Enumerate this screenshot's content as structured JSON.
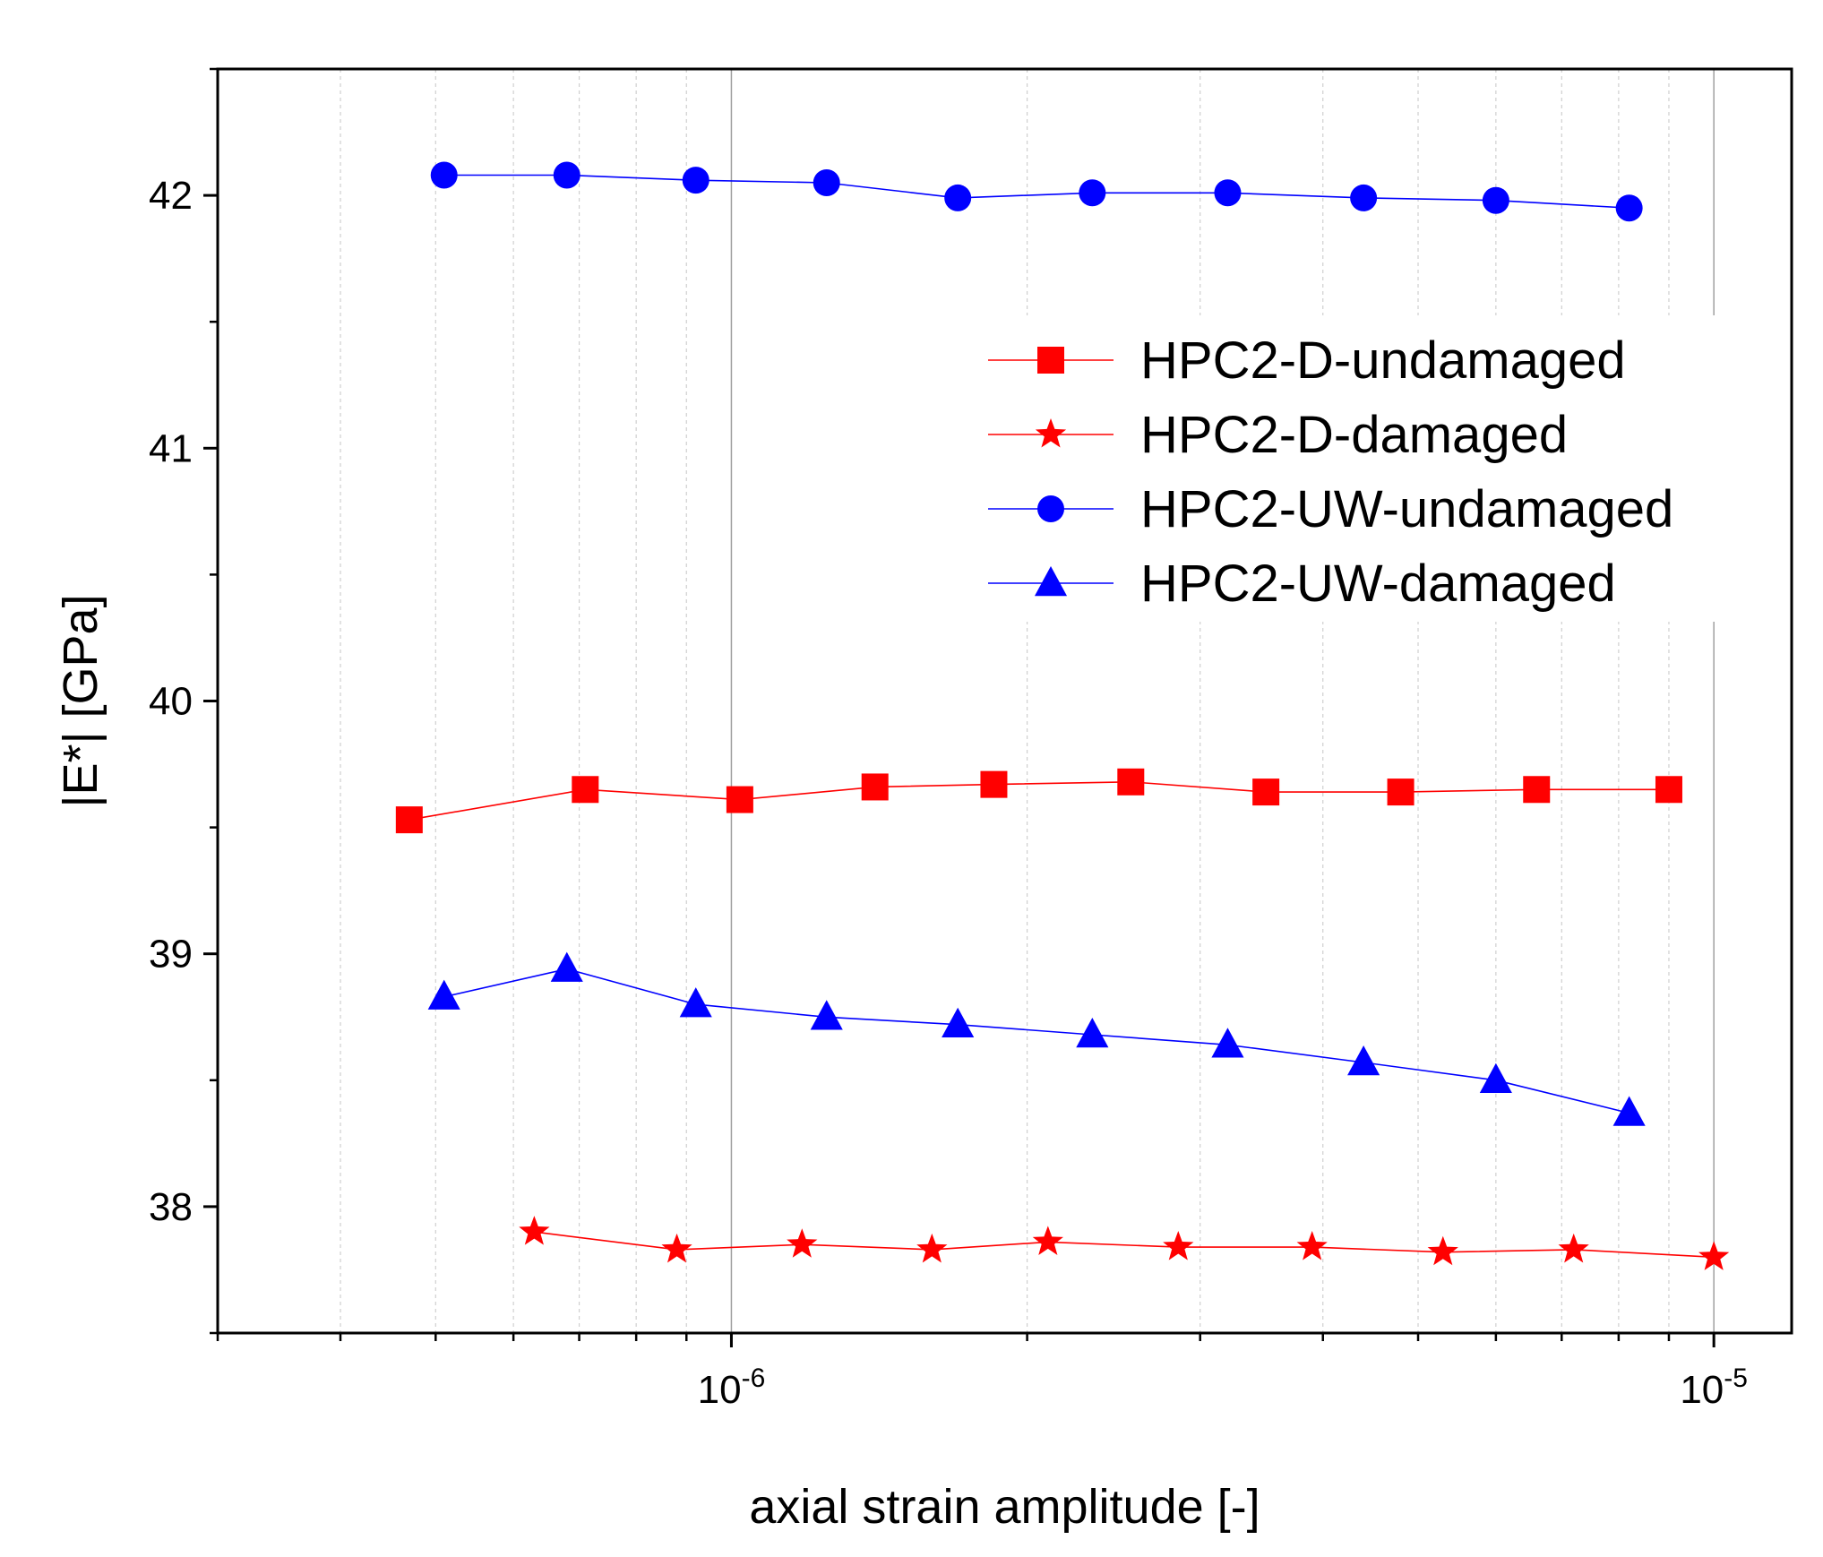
{
  "chart_data": {
    "type": "line",
    "title": "",
    "xlabel": "axial strain amplitude [-]",
    "ylabel": "|E*| [GPa]",
    "xscale": "log",
    "xlim": [
      3e-07,
      1.2e-05
    ],
    "ylim": [
      37.5,
      42.5
    ],
    "grid": "vertical (major solid, minor dashed)",
    "legend_position": "right, upper-middle",
    "x_ticks": [
      {
        "value": 1e-06,
        "base": "10",
        "exp": "-6"
      },
      {
        "value": 1e-05,
        "base": "10",
        "exp": "-5"
      }
    ],
    "y_ticks": [
      {
        "value": 38,
        "label": "38"
      },
      {
        "value": 39,
        "label": "39"
      },
      {
        "value": 40,
        "label": "40"
      },
      {
        "value": 41,
        "label": "41"
      },
      {
        "value": 42,
        "label": "42"
      }
    ],
    "series": [
      {
        "name": "HPC2-D-undamaged",
        "color": "#ff0000",
        "marker": "square",
        "x": [
          4.7e-07,
          7.1e-07,
          1.02e-06,
          1.4e-06,
          1.85e-06,
          2.55e-06,
          3.5e-06,
          4.8e-06,
          6.6e-06,
          9e-06
        ],
        "y": [
          39.53,
          39.65,
          39.61,
          39.66,
          39.67,
          39.68,
          39.64,
          39.64,
          39.65,
          39.65
        ]
      },
      {
        "name": "HPC2-D-damaged",
        "color": "#ff0000",
        "marker": "star",
        "x": [
          6.3e-07,
          8.8e-07,
          1.18e-06,
          1.6e-06,
          2.1e-06,
          2.85e-06,
          3.9e-06,
          5.3e-06,
          7.2e-06,
          1e-05
        ],
        "y": [
          37.9,
          37.83,
          37.85,
          37.83,
          37.86,
          37.84,
          37.84,
          37.82,
          37.83,
          37.8
        ]
      },
      {
        "name": "HPC2-UW-undamaged",
        "color": "#0000ff",
        "marker": "circle",
        "x": [
          5.1e-07,
          6.8e-07,
          9.2e-07,
          1.25e-06,
          1.7e-06,
          2.33e-06,
          3.2e-06,
          4.4e-06,
          6e-06,
          8.2e-06
        ],
        "y": [
          42.08,
          42.08,
          42.06,
          42.05,
          41.99,
          42.01,
          42.01,
          41.99,
          41.98,
          41.95
        ]
      },
      {
        "name": "HPC2-UW-damaged",
        "color": "#0000ff",
        "marker": "triangle",
        "x": [
          5.1e-07,
          6.8e-07,
          9.2e-07,
          1.25e-06,
          1.7e-06,
          2.33e-06,
          3.2e-06,
          4.4e-06,
          6e-06,
          8.2e-06
        ],
        "y": [
          38.83,
          38.94,
          38.8,
          38.75,
          38.72,
          38.68,
          38.64,
          38.57,
          38.5,
          38.37
        ]
      }
    ]
  }
}
